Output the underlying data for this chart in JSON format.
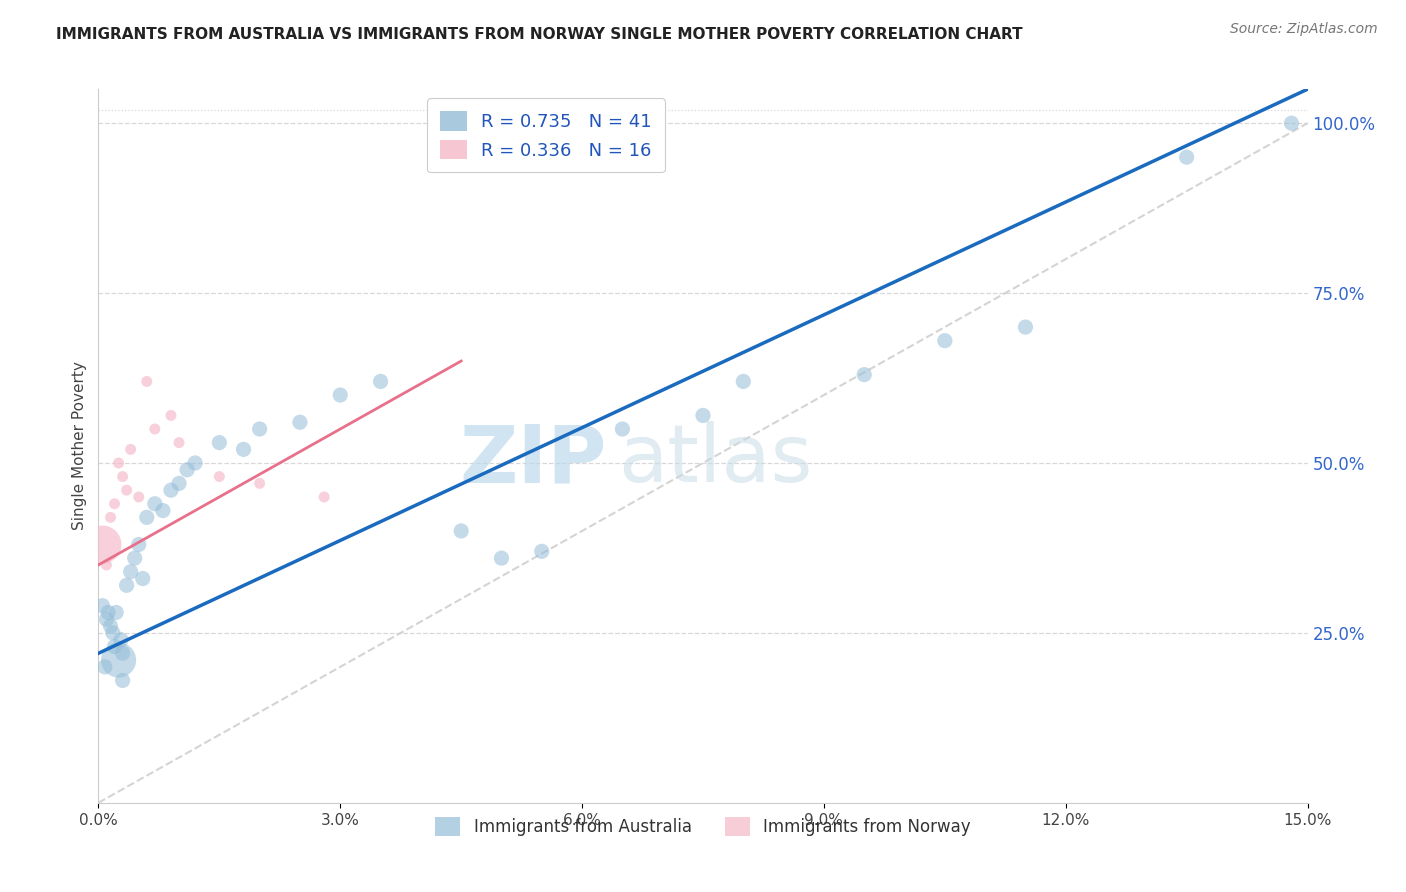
{
  "title": "IMMIGRANTS FROM AUSTRALIA VS IMMIGRANTS FROM NORWAY SINGLE MOTHER POVERTY CORRELATION CHART",
  "source": "Source: ZipAtlas.com",
  "ylabel": "Single Mother Poverty",
  "xlabel": "",
  "x_min": 0.0,
  "x_max": 15.0,
  "y_min": 0.0,
  "y_max": 105.0,
  "y_ticks": [
    25.0,
    50.0,
    75.0,
    100.0
  ],
  "x_ticks": [
    0.0,
    3.0,
    6.0,
    9.0,
    12.0,
    15.0
  ],
  "R_blue": 0.735,
  "N_blue": 41,
  "R_pink": 0.336,
  "N_pink": 16,
  "legend_labels": [
    "Immigrants from Australia",
    "Immigrants from Norway"
  ],
  "blue_color": "#94bcd8",
  "pink_color": "#f4b8c8",
  "trend_blue": "#1a6bbf",
  "trend_pink": "#e8708a",
  "ref_line_color": "#d0d0d0",
  "watermark_color": "#cde4f0",
  "australia_x": [
    0.05,
    0.1,
    0.12,
    0.15,
    0.18,
    0.2,
    0.22,
    0.25,
    0.28,
    0.3,
    0.35,
    0.4,
    0.45,
    0.5,
    0.55,
    0.6,
    0.7,
    0.8,
    0.9,
    1.0,
    1.1,
    1.2,
    1.5,
    1.8,
    2.0,
    2.5,
    3.0,
    3.5,
    4.5,
    5.0,
    5.5,
    6.5,
    7.5,
    8.0,
    9.5,
    10.5,
    11.5,
    13.5,
    14.8,
    0.08,
    0.3
  ],
  "australia_y": [
    29,
    27,
    28,
    26,
    25,
    23,
    28,
    21,
    24,
    22,
    32,
    34,
    36,
    38,
    33,
    42,
    44,
    43,
    46,
    47,
    49,
    50,
    53,
    52,
    55,
    56,
    60,
    62,
    40,
    36,
    37,
    55,
    57,
    62,
    63,
    68,
    70,
    95,
    100,
    20,
    18
  ],
  "australia_size": [
    15,
    15,
    15,
    15,
    15,
    15,
    15,
    80,
    15,
    15,
    15,
    15,
    15,
    15,
    15,
    15,
    15,
    15,
    15,
    15,
    15,
    15,
    15,
    15,
    15,
    15,
    15,
    15,
    15,
    15,
    15,
    15,
    15,
    15,
    15,
    15,
    15,
    15,
    15,
    15,
    15
  ],
  "norway_x": [
    0.05,
    0.1,
    0.15,
    0.2,
    0.25,
    0.3,
    0.4,
    0.5,
    0.7,
    0.9,
    1.0,
    1.5,
    2.0,
    2.8,
    0.6,
    0.35
  ],
  "norway_y": [
    38,
    35,
    42,
    44,
    50,
    48,
    52,
    45,
    55,
    57,
    53,
    48,
    47,
    45,
    62,
    46
  ],
  "norway_size": [
    300,
    25,
    25,
    25,
    25,
    25,
    25,
    25,
    25,
    25,
    25,
    25,
    25,
    25,
    25,
    25
  ],
  "trend_blue_x0": 0.0,
  "trend_blue_y0": 22.0,
  "trend_blue_x1": 15.0,
  "trend_blue_y1": 105.0,
  "trend_pink_x0": 0.0,
  "trend_pink_y0": 35.0,
  "trend_pink_x1": 4.5,
  "trend_pink_y1": 65.0,
  "ref_line_x0": 0.0,
  "ref_line_y0": 0.0,
  "ref_line_x1": 15.0,
  "ref_line_y1": 100.0
}
